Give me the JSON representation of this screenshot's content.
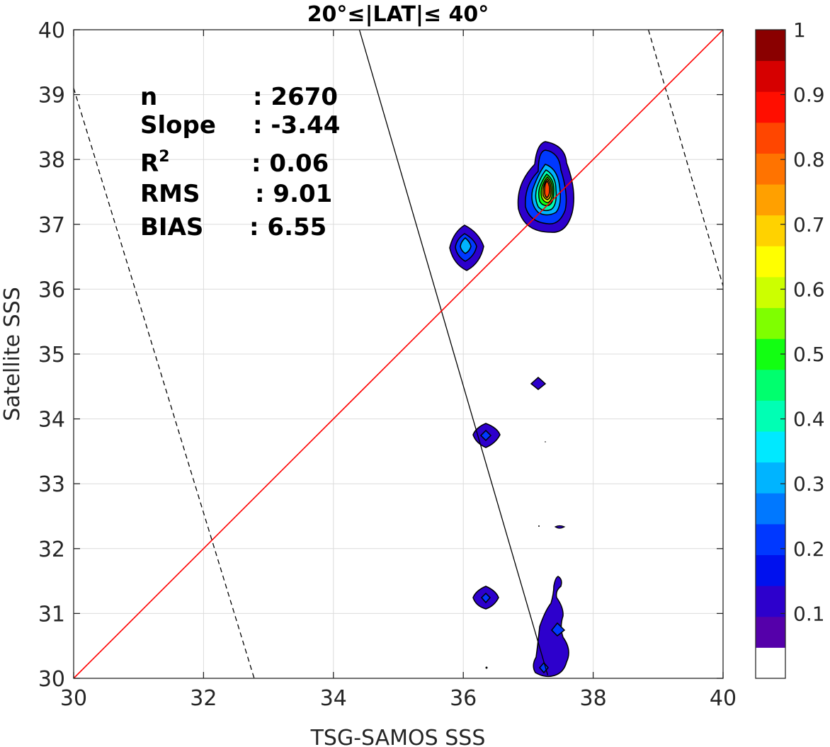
{
  "chart_data": {
    "type": "contour",
    "title": "20°≤|LAT|≤ 40°",
    "xlabel": "TSG-SAMOS SSS",
    "ylabel": "Satellite SSS",
    "xlim": [
      30,
      40
    ],
    "ylim": [
      30,
      40
    ],
    "x_ticks": [
      30,
      32,
      34,
      36,
      38,
      40
    ],
    "y_ticks": [
      30,
      31,
      32,
      33,
      34,
      35,
      36,
      37,
      38,
      39,
      40
    ],
    "grid": true,
    "stats": [
      {
        "label": "n",
        "value": ": 2670"
      },
      {
        "label": "Slope",
        "value": ": -3.44"
      },
      {
        "label": "R",
        "sup": "2",
        "value": ": 0.06"
      },
      {
        "label": "RMS",
        "value": ": 9.01"
      },
      {
        "label": "BIAS",
        "value": ": 6.55"
      }
    ],
    "one_to_one_line": {
      "color": "#ff0000",
      "from": [
        30,
        30
      ],
      "to": [
        40,
        40
      ]
    },
    "fit_line": {
      "color": "#000000",
      "slope": -3.44,
      "from": [
        34.4,
        40
      ],
      "to": [
        37.3,
        30.05
      ]
    },
    "fit_bounds": [
      {
        "style": "dashed",
        "from": [
          30,
          39.1
        ],
        "to": [
          32.78,
          30
        ]
      },
      {
        "style": "dashed",
        "from": [
          38.85,
          40
        ],
        "to": [
          40,
          36.05
        ]
      }
    ],
    "colorbar": {
      "ticks": [
        "0.1",
        "0.2",
        "0.3",
        "0.4",
        "0.5",
        "0.6",
        "0.7",
        "0.8",
        "0.9",
        "1"
      ],
      "colors": [
        "#ffffff",
        "#5500aa",
        "#2d00cc",
        "#0011ee",
        "#0038ff",
        "#0078ff",
        "#00b4ff",
        "#00e9ff",
        "#00ffb4",
        "#00ff6e",
        "#12ff12",
        "#7fff00",
        "#ccff00",
        "#ffff00",
        "#ffd200",
        "#ffa000",
        "#ff7300",
        "#ff4600",
        "#ff0e00",
        "#d60000",
        "#8a0000"
      ]
    },
    "contour_blobs": [
      {
        "cx": 37.3,
        "cy": 37.45,
        "peak": 0.85
      },
      {
        "cx": 36.05,
        "cy": 36.65,
        "peak": 0.3
      },
      {
        "cx": 37.15,
        "cy": 34.55,
        "peak": 0.1
      },
      {
        "cx": 36.33,
        "cy": 33.75,
        "peak": 0.15
      },
      {
        "cx": 37.47,
        "cy": 32.34,
        "peak": 0.1
      },
      {
        "cx": 36.33,
        "cy": 31.25,
        "peak": 0.15
      },
      {
        "cx": 37.35,
        "cy": 30.6,
        "peak": 0.15
      }
    ]
  }
}
